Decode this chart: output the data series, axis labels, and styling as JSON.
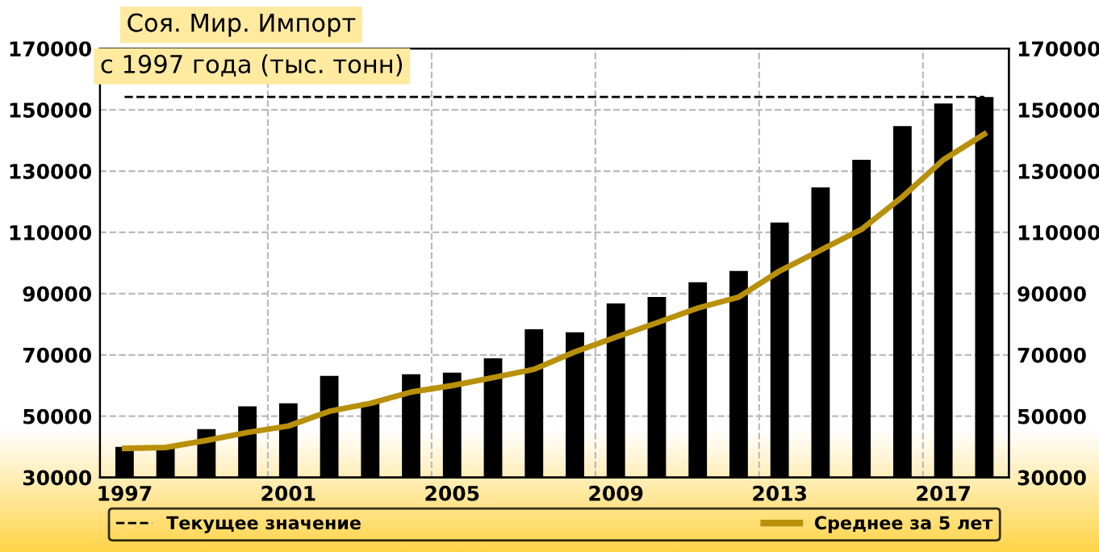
{
  "chart_data": {
    "type": "bar",
    "title": "Соя. Мир. Импорт",
    "subtitle": "с 1997 года (тыс. тонн)",
    "categories": [
      "1997",
      null,
      null,
      null,
      "2001",
      null,
      null,
      null,
      "2005",
      null,
      null,
      null,
      "2009",
      null,
      null,
      null,
      "2013",
      null,
      null,
      null,
      "2017",
      null
    ],
    "series": [
      {
        "color": "#000000",
        "values": [
          40000,
          39500,
          45800,
          53200,
          54200,
          63200,
          54500,
          63700,
          64200,
          68900,
          78400,
          77400,
          86800,
          88900,
          93700,
          97400,
          113200,
          124700,
          133700,
          144700,
          152100,
          154200
        ]
      },
      {
        "type": "line",
        "name": "Среднее за 5 лет",
        "color": "#b8900a",
        "values": [
          39500,
          39800,
          42100,
          44700,
          46800,
          51600,
          54200,
          57900,
          60000,
          62600,
          65300,
          71000,
          75800,
          80500,
          85300,
          88900,
          97400,
          104200,
          111000,
          121600,
          133700,
          142100
        ]
      }
    ],
    "ylim": [
      30000,
      170000
    ],
    "yticks": [
      30000,
      50000,
      70000,
      90000,
      110000,
      130000,
      150000,
      170000
    ],
    "y2lim": [
      30000,
      170000
    ],
    "y2ticks": [
      30000,
      50000,
      70000,
      90000,
      110000,
      130000,
      150000,
      170000
    ],
    "ref_lines": [
      {
        "axis": "y",
        "value": 154200,
        "label": "Текущее значение",
        "color": "#000000",
        "line_style": "dashed"
      }
    ],
    "grid": true,
    "legend": "bottom",
    "line_style": "solid",
    "marker": "none"
  }
}
